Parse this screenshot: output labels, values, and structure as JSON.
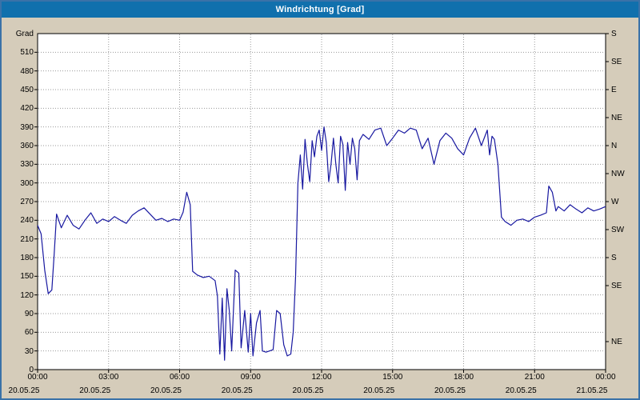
{
  "window": {
    "title": "Windrichtung [Grad]"
  },
  "colors": {
    "frame_bg": "#d5ccba",
    "frame_border": "#3a72a8",
    "titlebar_bg": "#1070ad",
    "titlebar_text": "#ffffff",
    "plot_bg": "#ffffff",
    "grid": "#9a9a9a",
    "line": "#1818a0",
    "text": "#000000"
  },
  "axes": {
    "y_unit_label": "Grad",
    "yticks": [
      0,
      30,
      60,
      90,
      120,
      150,
      180,
      210,
      240,
      270,
      300,
      330,
      360,
      390,
      420,
      450,
      480,
      510
    ],
    "xticks": [
      {
        "hour": 0,
        "time": "00:00",
        "date": "20.05.25"
      },
      {
        "hour": 3,
        "time": "03:00",
        "date": "20.05.25"
      },
      {
        "hour": 6,
        "time": "06:00",
        "date": "20.05.25"
      },
      {
        "hour": 9,
        "time": "09:00",
        "date": "20.05.25"
      },
      {
        "hour": 12,
        "time": "12:00",
        "date": "20.05.25"
      },
      {
        "hour": 15,
        "time": "15:00",
        "date": "20.05.25"
      },
      {
        "hour": 18,
        "time": "18:00",
        "date": "20.05.25"
      },
      {
        "hour": 21,
        "time": "21:00",
        "date": "20.05.25"
      },
      {
        "hour": 24,
        "time": "00:00",
        "date": "21.05.25"
      }
    ],
    "right_axis": [
      {
        "value": 540,
        "label": "S"
      },
      {
        "value": 495,
        "label": "SE"
      },
      {
        "value": 450,
        "label": "E"
      },
      {
        "value": 405,
        "label": "NE"
      },
      {
        "value": 360,
        "label": "N"
      },
      {
        "value": 315,
        "label": "NW"
      },
      {
        "value": 270,
        "label": "W"
      },
      {
        "value": 225,
        "label": "SW"
      },
      {
        "value": 180,
        "label": "S"
      },
      {
        "value": 135,
        "label": "SE"
      },
      {
        "value": 45,
        "label": "NE"
      }
    ]
  },
  "chart_data": {
    "type": "line",
    "title": "Windrichtung [Grad]",
    "xlabel": "",
    "ylabel": "Grad",
    "xlim": [
      0,
      24
    ],
    "ylim": [
      0,
      540
    ],
    "grid": true,
    "legend": "none",
    "series": [
      {
        "name": "Windrichtung",
        "color": "#1818a0",
        "x_hours": [
          0,
          0.15,
          0.3,
          0.45,
          0.6,
          0.7,
          0.8,
          1,
          1.25,
          1.5,
          1.75,
          2,
          2.25,
          2.5,
          2.75,
          3,
          3.25,
          3.5,
          3.75,
          4,
          4.25,
          4.5,
          4.75,
          5,
          5.25,
          5.5,
          5.75,
          6,
          6.15,
          6.3,
          6.45,
          6.55,
          6.75,
          7,
          7.25,
          7.5,
          7.6,
          7.7,
          7.8,
          7.9,
          8,
          8.1,
          8.2,
          8.35,
          8.5,
          8.6,
          8.75,
          8.9,
          9,
          9.1,
          9.25,
          9.4,
          9.5,
          9.65,
          9.8,
          9.95,
          10.1,
          10.25,
          10.4,
          10.55,
          10.7,
          10.8,
          10.9,
          11,
          11.1,
          11.2,
          11.3,
          11.4,
          11.5,
          11.6,
          11.7,
          11.8,
          11.9,
          12,
          12.1,
          12.2,
          12.3,
          12.4,
          12.5,
          12.6,
          12.7,
          12.8,
          12.9,
          13,
          13.1,
          13.2,
          13.3,
          13.4,
          13.5,
          13.6,
          13.75,
          14,
          14.25,
          14.5,
          14.75,
          15,
          15.25,
          15.5,
          15.75,
          16,
          16.25,
          16.5,
          16.75,
          17,
          17.25,
          17.5,
          17.75,
          18,
          18.25,
          18.5,
          18.75,
          19,
          19.1,
          19.2,
          19.3,
          19.45,
          19.6,
          19.75,
          20,
          20.25,
          20.5,
          20.75,
          21,
          21.25,
          21.5,
          21.6,
          21.75,
          21.9,
          22,
          22.25,
          22.5,
          22.75,
          23,
          23.25,
          23.5,
          23.75,
          24
        ],
        "values": [
          232,
          218,
          160,
          122,
          128,
          185,
          250,
          228,
          248,
          232,
          226,
          240,
          252,
          235,
          242,
          238,
          246,
          240,
          235,
          248,
          255,
          260,
          250,
          240,
          243,
          238,
          242,
          240,
          253,
          285,
          265,
          158,
          152,
          148,
          150,
          143,
          118,
          25,
          115,
          15,
          130,
          95,
          30,
          160,
          155,
          35,
          95,
          28,
          90,
          22,
          75,
          95,
          30,
          28,
          30,
          32,
          95,
          90,
          40,
          22,
          25,
          60,
          150,
          300,
          345,
          290,
          370,
          330,
          302,
          368,
          342,
          375,
          385,
          352,
          390,
          365,
          302,
          330,
          372,
          330,
          300,
          375,
          362,
          288,
          365,
          330,
          372,
          355,
          305,
          368,
          378,
          370,
          385,
          388,
          360,
          372,
          385,
          380,
          388,
          385,
          355,
          372,
          330,
          368,
          380,
          372,
          355,
          345,
          372,
          388,
          360,
          385,
          345,
          375,
          370,
          330,
          245,
          238,
          232,
          240,
          242,
          238,
          245,
          248,
          252,
          295,
          285,
          255,
          262,
          255,
          265,
          258,
          252,
          260,
          255,
          258,
          262
        ]
      }
    ]
  }
}
